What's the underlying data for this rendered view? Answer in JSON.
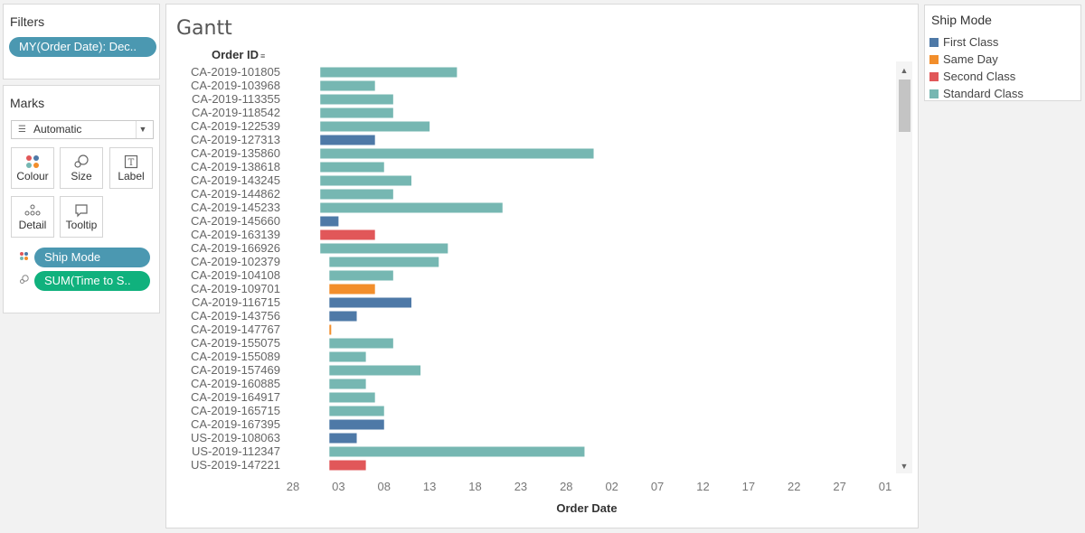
{
  "filters": {
    "title": "Filters",
    "pills": [
      {
        "label": "MY(Order Date): Dec.."
      }
    ]
  },
  "marks": {
    "title": "Marks",
    "mark_type": "Automatic",
    "cards": [
      "Colour",
      "Size",
      "Label",
      "Detail",
      "Tooltip"
    ],
    "shelf_pills": [
      {
        "label": "Ship Mode",
        "icon": "colour-dots-icon",
        "color": "#4b98b1"
      },
      {
        "label": "SUM(Time to S..",
        "icon": "size-icon",
        "color": "#10b17d"
      }
    ]
  },
  "viz": {
    "title": "Gantt",
    "row_header": "Order ID",
    "x_axis_title": "Order Date",
    "x_tick_labels": [
      "28",
      "03",
      "08",
      "13",
      "18",
      "23",
      "28",
      "02",
      "07",
      "12",
      "17",
      "22",
      "27",
      "01"
    ]
  },
  "legend": {
    "title": "Ship Mode",
    "items": [
      {
        "label": "First Class",
        "color": "#4e79a7"
      },
      {
        "label": "Same Day",
        "color": "#f28e2b"
      },
      {
        "label": "Second Class",
        "color": "#e15759"
      },
      {
        "label": "Standard Class",
        "color": "#76b7b2"
      }
    ]
  },
  "chart_data": {
    "type": "gantt",
    "x_axis": "Order Date",
    "y_axis": "Order ID",
    "x_ticks": [
      "2019-11-28",
      "2019-12-03",
      "2019-12-08",
      "2019-12-13",
      "2019-12-18",
      "2019-12-23",
      "2019-12-28",
      "2020-01-02",
      "2020-01-07",
      "2020-01-12",
      "2020-01-17",
      "2020-01-22",
      "2020-01-27",
      "2020-02-01"
    ],
    "rows": [
      {
        "id": "CA-2019-101805",
        "start": "2019-12-01",
        "end": "2019-12-16",
        "ship_mode": "Standard Class"
      },
      {
        "id": "CA-2019-103968",
        "start": "2019-12-01",
        "end": "2019-12-07",
        "ship_mode": "Standard Class"
      },
      {
        "id": "CA-2019-113355",
        "start": "2019-12-01",
        "end": "2019-12-09",
        "ship_mode": "Standard Class"
      },
      {
        "id": "CA-2019-118542",
        "start": "2019-12-01",
        "end": "2019-12-09",
        "ship_mode": "Standard Class"
      },
      {
        "id": "CA-2019-122539",
        "start": "2019-12-01",
        "end": "2019-12-13",
        "ship_mode": "Standard Class"
      },
      {
        "id": "CA-2019-127313",
        "start": "2019-12-01",
        "end": "2019-12-07",
        "ship_mode": "First Class"
      },
      {
        "id": "CA-2019-135860",
        "start": "2019-12-01",
        "end": "2019-12-31",
        "ship_mode": "Standard Class"
      },
      {
        "id": "CA-2019-138618",
        "start": "2019-12-01",
        "end": "2019-12-08",
        "ship_mode": "Standard Class"
      },
      {
        "id": "CA-2019-143245",
        "start": "2019-12-01",
        "end": "2019-12-11",
        "ship_mode": "Standard Class"
      },
      {
        "id": "CA-2019-144862",
        "start": "2019-12-01",
        "end": "2019-12-09",
        "ship_mode": "Standard Class"
      },
      {
        "id": "CA-2019-145233",
        "start": "2019-12-01",
        "end": "2019-12-21",
        "ship_mode": "Standard Class"
      },
      {
        "id": "CA-2019-145660",
        "start": "2019-12-01",
        "end": "2019-12-03",
        "ship_mode": "First Class"
      },
      {
        "id": "CA-2019-163139",
        "start": "2019-12-01",
        "end": "2019-12-07",
        "ship_mode": "Second Class"
      },
      {
        "id": "CA-2019-166926",
        "start": "2019-12-01",
        "end": "2019-12-15",
        "ship_mode": "Standard Class"
      },
      {
        "id": "CA-2019-102379",
        "start": "2019-12-02",
        "end": "2019-12-14",
        "ship_mode": "Standard Class"
      },
      {
        "id": "CA-2019-104108",
        "start": "2019-12-02",
        "end": "2019-12-09",
        "ship_mode": "Standard Class"
      },
      {
        "id": "CA-2019-109701",
        "start": "2019-12-02",
        "end": "2019-12-07",
        "ship_mode": "Same Day"
      },
      {
        "id": "CA-2019-116715",
        "start": "2019-12-02",
        "end": "2019-12-11",
        "ship_mode": "First Class"
      },
      {
        "id": "CA-2019-143756",
        "start": "2019-12-02",
        "end": "2019-12-05",
        "ship_mode": "First Class"
      },
      {
        "id": "CA-2019-147767",
        "start": "2019-12-02",
        "end": "2019-12-02",
        "ship_mode": "Same Day"
      },
      {
        "id": "CA-2019-155075",
        "start": "2019-12-02",
        "end": "2019-12-09",
        "ship_mode": "Standard Class"
      },
      {
        "id": "CA-2019-155089",
        "start": "2019-12-02",
        "end": "2019-12-06",
        "ship_mode": "Standard Class"
      },
      {
        "id": "CA-2019-157469",
        "start": "2019-12-02",
        "end": "2019-12-12",
        "ship_mode": "Standard Class"
      },
      {
        "id": "CA-2019-160885",
        "start": "2019-12-02",
        "end": "2019-12-06",
        "ship_mode": "Standard Class"
      },
      {
        "id": "CA-2019-164917",
        "start": "2019-12-02",
        "end": "2019-12-07",
        "ship_mode": "Standard Class"
      },
      {
        "id": "CA-2019-165715",
        "start": "2019-12-02",
        "end": "2019-12-08",
        "ship_mode": "Standard Class"
      },
      {
        "id": "CA-2019-167395",
        "start": "2019-12-02",
        "end": "2019-12-08",
        "ship_mode": "First Class"
      },
      {
        "id": "US-2019-108063",
        "start": "2019-12-02",
        "end": "2019-12-05",
        "ship_mode": "First Class"
      },
      {
        "id": "US-2019-112347",
        "start": "2019-12-02",
        "end": "2019-12-30",
        "ship_mode": "Standard Class"
      },
      {
        "id": "US-2019-147221",
        "start": "2019-12-02",
        "end": "2019-12-06",
        "ship_mode": "Second Class"
      }
    ]
  }
}
